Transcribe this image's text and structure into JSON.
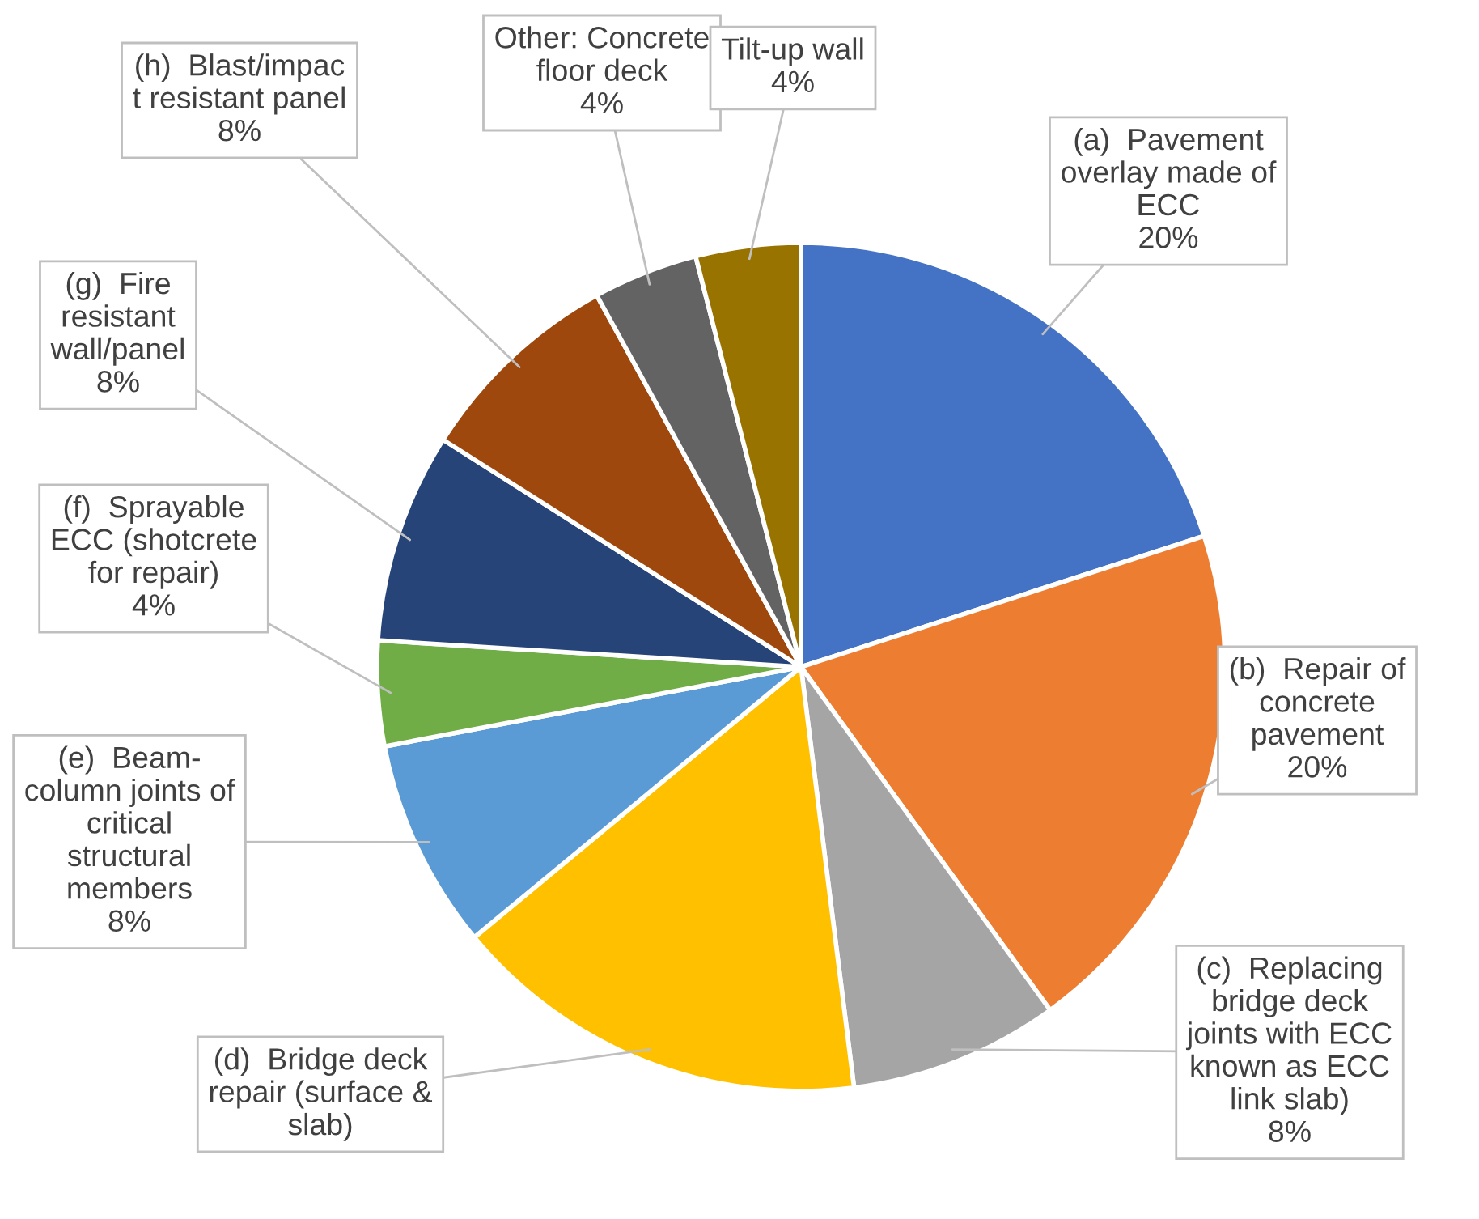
{
  "chart_data": {
    "type": "pie",
    "categories": [
      "(a)  Pavement\noverlay made of\nECC",
      "(b)  Repair of\nconcrete\npavement",
      "(c)  Replacing\nbridge deck\njoints with ECC\nknown as ECC\nlink slab)",
      "(d)  Bridge deck\nrepair (surface &\nslab)",
      "(e)  Beam-\ncolumn joints of\ncritical\nstructural\nmembers",
      "(f)  Sprayable\nECC (shotcrete\nfor repair)",
      "(g)  Fire\nresistant\nwall/panel",
      "(h)  Blast/impac\nt resistant panel",
      "Other: Concrete\nfloor deck",
      "Tilt-up wall"
    ],
    "values": [
      20,
      20,
      8,
      16,
      8,
      4,
      8,
      8,
      4,
      4
    ],
    "value_labels": [
      "20%",
      "20%",
      "8%",
      null,
      "8%",
      "4%",
      "8%",
      "8%",
      "4%",
      "4%"
    ],
    "colors": [
      "#4472c4",
      "#ed7d31",
      "#a5a5a5",
      "#ffc000",
      "#5b9bd5",
      "#70ad47",
      "#264478",
      "#9e480e",
      "#636363",
      "#997300"
    ],
    "legend": false
  }
}
